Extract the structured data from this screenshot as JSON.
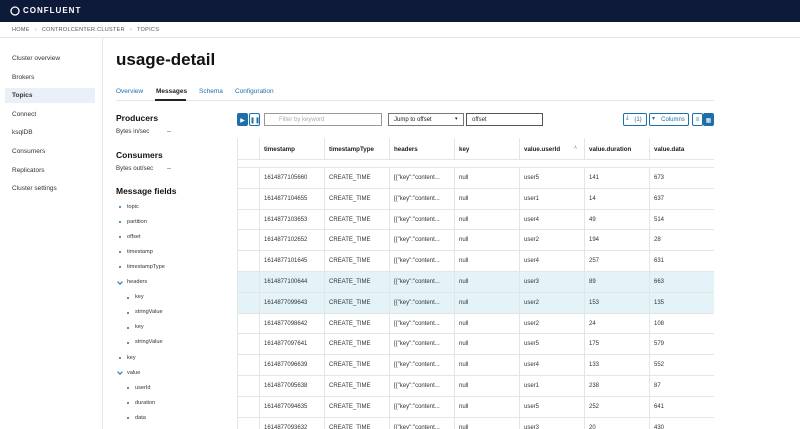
{
  "brand": "CONFLUENT",
  "breadcrumb": [
    "HOME",
    "CONTROLCENTER.CLUSTER",
    "TOPICS"
  ],
  "sidebar": [
    "Cluster overview",
    "Brokers",
    "Topics",
    "Connect",
    "ksqlDB",
    "Consumers",
    "Replicators",
    "Cluster settings"
  ],
  "title": "usage-detail",
  "tabs": [
    "Overview",
    "Messages",
    "Schema",
    "Configuration"
  ],
  "producers": {
    "heading": "Producers",
    "label": "Bytes in/sec",
    "value": "--"
  },
  "consumers": {
    "heading": "Consumers",
    "label": "Bytes out/sec",
    "value": "--"
  },
  "message_fields": {
    "heading": "Message fields",
    "fields": [
      {
        "label": "topic"
      },
      {
        "label": "partition"
      },
      {
        "label": "offset"
      },
      {
        "label": "timestamp"
      },
      {
        "label": "timestampType"
      },
      {
        "label": "headers",
        "children": [
          {
            "label": "key"
          },
          {
            "label": "stringValue"
          },
          {
            "label": "key"
          },
          {
            "label": "stringValue"
          }
        ]
      },
      {
        "label": "key"
      },
      {
        "label": "value",
        "children": [
          {
            "label": "userId"
          },
          {
            "label": "duration"
          },
          {
            "label": "data"
          }
        ]
      }
    ]
  },
  "toolbar": {
    "filter_placeholder": "Filter by keyword",
    "jump_select": "Jump to offset",
    "offset_input": "offset",
    "download": "(1)",
    "columns": "Columns"
  },
  "table": {
    "columns": [
      "timestamp",
      "timestampType",
      "headers",
      "key",
      "value.userId",
      "value.duration",
      "value.data"
    ],
    "rows": [
      [
        "1614877105660",
        "CREATE_TIME",
        "[{\"key\":\"content...",
        "null",
        "user5",
        "141",
        "673"
      ],
      [
        "1614877104655",
        "CREATE_TIME",
        "[{\"key\":\"content...",
        "null",
        "user1",
        "14",
        "637"
      ],
      [
        "1614877103653",
        "CREATE_TIME",
        "[{\"key\":\"content...",
        "null",
        "user4",
        "49",
        "514"
      ],
      [
        "1614877102652",
        "CREATE_TIME",
        "[{\"key\":\"content...",
        "null",
        "user2",
        "194",
        "28"
      ],
      [
        "1614877101645",
        "CREATE_TIME",
        "[{\"key\":\"content...",
        "null",
        "user4",
        "257",
        "631"
      ],
      [
        "1614877100644",
        "CREATE_TIME",
        "[{\"key\":\"content...",
        "null",
        "user3",
        "89",
        "663"
      ],
      [
        "1614877099643",
        "CREATE_TIME",
        "[{\"key\":\"content...",
        "null",
        "user2",
        "153",
        "135"
      ],
      [
        "1614877098642",
        "CREATE_TIME",
        "[{\"key\":\"content...",
        "null",
        "user2",
        "24",
        "108"
      ],
      [
        "1614877097641",
        "CREATE_TIME",
        "[{\"key\":\"content...",
        "null",
        "user5",
        "175",
        "579"
      ],
      [
        "1614877096639",
        "CREATE_TIME",
        "[{\"key\":\"content...",
        "null",
        "user4",
        "133",
        "552"
      ],
      [
        "1614877095638",
        "CREATE_TIME",
        "[{\"key\":\"content...",
        "null",
        "user1",
        "238",
        "87"
      ],
      [
        "1614877094635",
        "CREATE_TIME",
        "[{\"key\":\"content...",
        "null",
        "user5",
        "252",
        "641"
      ],
      [
        "1614877093632",
        "CREATE_TIME",
        "[{\"key\":\"content...",
        "null",
        "user3",
        "20",
        "430"
      ]
    ]
  }
}
